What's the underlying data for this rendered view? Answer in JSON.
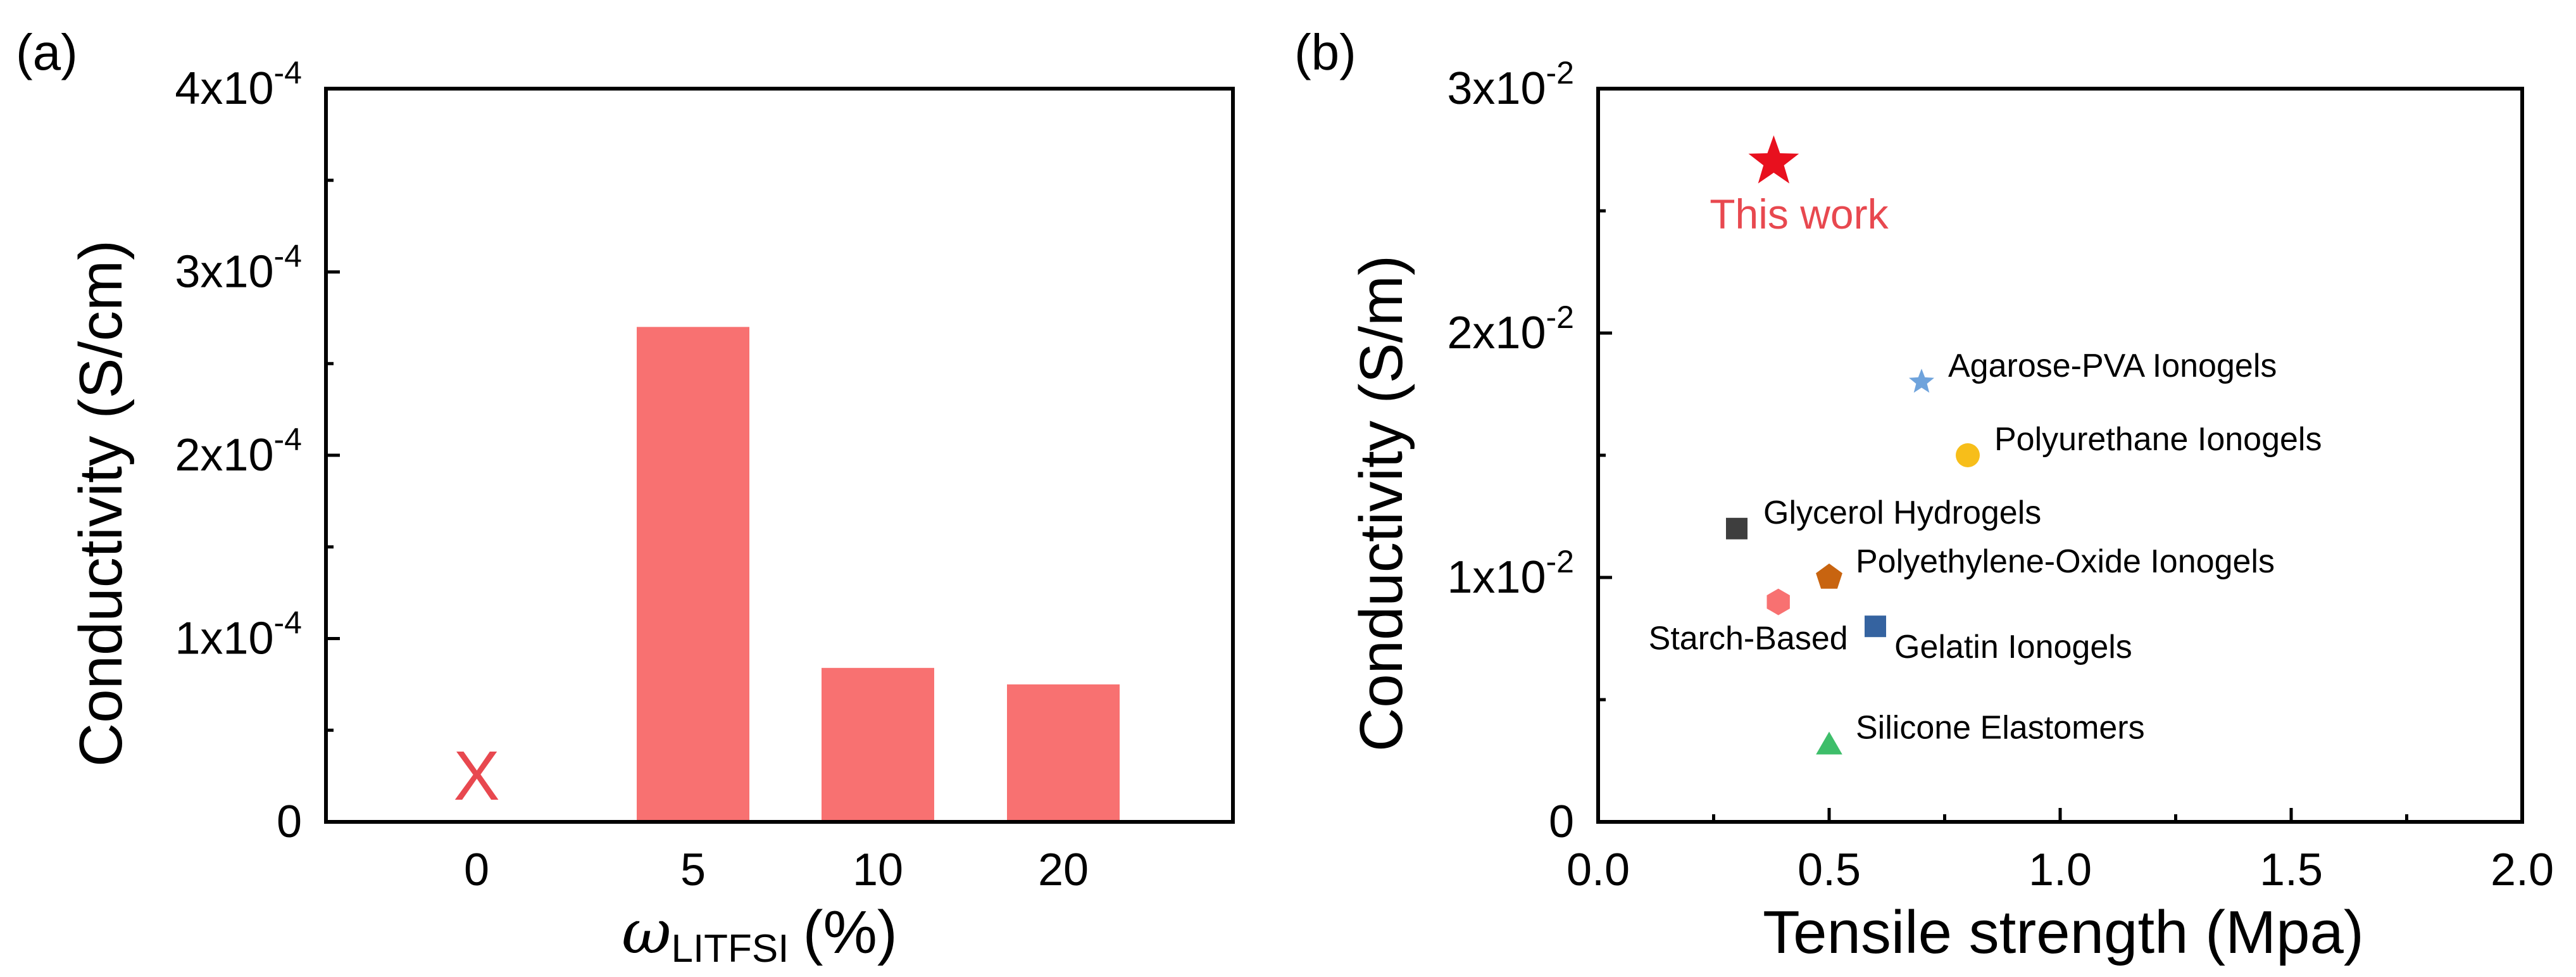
{
  "chart_data": [
    {
      "panel_label": "(a)",
      "type": "bar",
      "categories": [
        "0",
        "5",
        "10",
        "20"
      ],
      "values": [
        0,
        0.00027,
        8.4e-05,
        7.5e-05
      ],
      "ylim": [
        0,
        0.0004
      ],
      "yticks": [
        {
          "value": 0,
          "base": "0",
          "exp": ""
        },
        {
          "value": 0.0001,
          "base": "1x10",
          "exp": "-4"
        },
        {
          "value": 0.0002,
          "base": "2x10",
          "exp": "-4"
        },
        {
          "value": 0.0003,
          "base": "3x10",
          "exp": "-4"
        },
        {
          "value": 0.0004,
          "base": "4x10",
          "exp": "-4"
        }
      ],
      "ylabel": "Conductivity (S/cm)",
      "xlabel": {
        "symbol": "ω",
        "subscript": "LITFSI",
        "unit": "(%)"
      },
      "bar_color": "#F87171",
      "missing_marker": {
        "category": "0",
        "text": "X",
        "color": "#E8484F"
      }
    },
    {
      "panel_label": "(b)",
      "type": "scatter",
      "xlim": [
        0,
        2.0
      ],
      "ylim": [
        0,
        0.03
      ],
      "xticks": [
        "0.0",
        "0.5",
        "1.0",
        "1.5",
        "2.0"
      ],
      "xtick_values": [
        0,
        0.5,
        1.0,
        1.5,
        2.0
      ],
      "yticks": [
        {
          "value": 0,
          "base": "0",
          "exp": ""
        },
        {
          "value": 0.01,
          "base": "1x10",
          "exp": "-2"
        },
        {
          "value": 0.02,
          "base": "2x10",
          "exp": "-2"
        },
        {
          "value": 0.03,
          "base": "3x10",
          "exp": "-2"
        }
      ],
      "xlabel": "Tensile strength (Mpa)",
      "ylabel": "Conductivity (S/m)",
      "points": [
        {
          "name": "This work",
          "x": 0.38,
          "y": 0.027,
          "marker": "star-large",
          "color": "#E8101E",
          "label_color": "#E8484F",
          "label_side": "below"
        },
        {
          "name": "Agarose-PVA Ionogels",
          "x": 0.7,
          "y": 0.018,
          "marker": "star",
          "color": "#6FA3DC",
          "label_side": "right"
        },
        {
          "name": "Polyurethane Ionogels",
          "x": 0.8,
          "y": 0.015,
          "marker": "circle",
          "color": "#F7BE1A",
          "label_side": "right"
        },
        {
          "name": "Glycerol Hydrogels",
          "x": 0.3,
          "y": 0.012,
          "marker": "square",
          "color": "#3E3E3E",
          "label_side": "right"
        },
        {
          "name": "Polyethylene-Oxide Ionogels",
          "x": 0.5,
          "y": 0.01,
          "marker": "pentagon",
          "color": "#C86410",
          "label_side": "right"
        },
        {
          "name": "Starch-Based",
          "x": 0.39,
          "y": 0.009,
          "marker": "hexagon",
          "color": "#F87171",
          "label_side": "below-left"
        },
        {
          "name": "Gelatin Ionogels",
          "x": 0.6,
          "y": 0.008,
          "marker": "square",
          "color": "#3563A0",
          "label_side": "below-right"
        },
        {
          "name": "Silicone Elastomers",
          "x": 0.5,
          "y": 0.0032,
          "marker": "triangle",
          "color": "#3EBE6A",
          "label_side": "right"
        }
      ]
    }
  ]
}
